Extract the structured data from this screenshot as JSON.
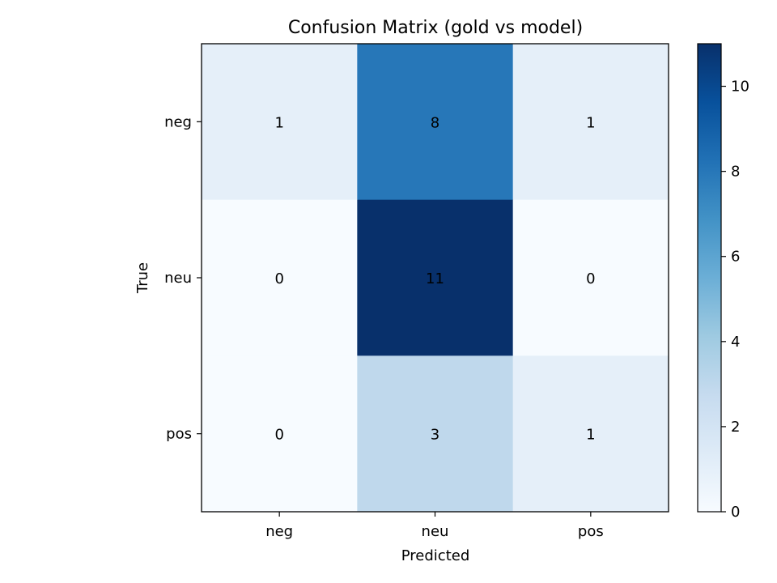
{
  "chart_data": {
    "type": "heatmap",
    "title": "Confusion Matrix (gold vs model)",
    "xlabel": "Predicted",
    "ylabel": "True",
    "x_categories": [
      "neg",
      "neu",
      "pos"
    ],
    "y_categories": [
      "neg",
      "neu",
      "pos"
    ],
    "values": [
      [
        1,
        8,
        1
      ],
      [
        0,
        11,
        0
      ],
      [
        0,
        3,
        1
      ]
    ],
    "colormap": "Blues",
    "vmin": 0,
    "vmax": 11,
    "colorbar_ticks": [
      0,
      2,
      4,
      6,
      8,
      10
    ],
    "grid": false
  }
}
